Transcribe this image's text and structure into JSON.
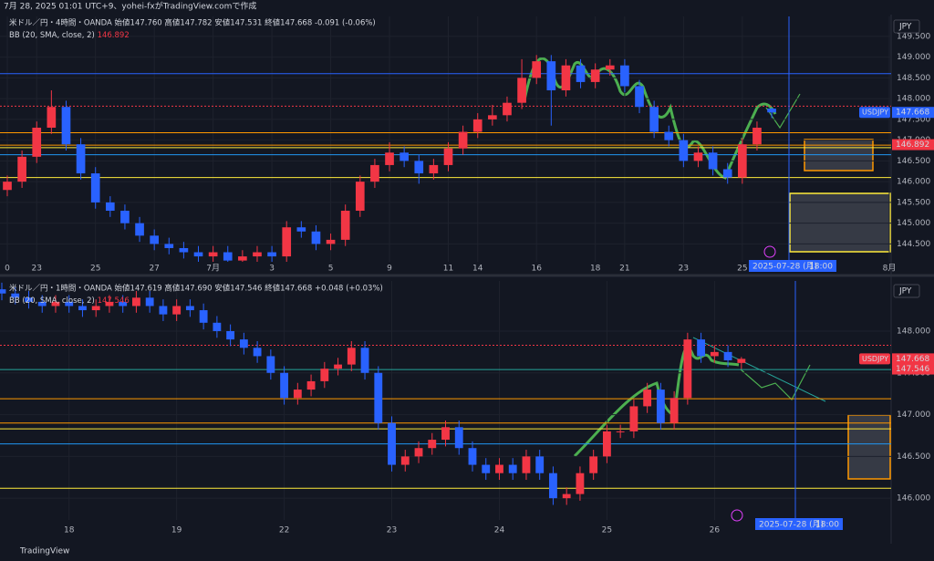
{
  "header": "7月 28, 2025 01:01 UTC+9、yohei-fxがTradingView.comで作成",
  "footer": "TradingView",
  "chart_data": [
    {
      "type": "candlestick",
      "legend": "米ドル／円・4時間・OANDA 始値147.760 高値147.782 安値147.531 終値147.668 -0.091 (-0.06%)",
      "indicator": "BB (20, SMA, close, 2)",
      "currency": "JPY",
      "crosshair_label": "2025-07-28 (月)",
      "crosshair_time": "18:00",
      "up_color": "#f23645",
      "down_color": "#2962ff",
      "categories": [
        "0",
        null,
        "23",
        null,
        null,
        null,
        "25",
        null,
        null,
        null,
        "27",
        null,
        null,
        null,
        "7月",
        null,
        null,
        null,
        "3",
        null,
        null,
        null,
        "5",
        null,
        null,
        null,
        "9",
        null,
        null,
        null,
        "11",
        null,
        "14",
        null,
        null,
        null,
        "16",
        null,
        null,
        null,
        "18",
        null,
        "21",
        null,
        null,
        null,
        "23",
        null,
        null,
        null,
        "25",
        null,
        null,
        null,
        null,
        null,
        null,
        null,
        null,
        null,
        "8月"
      ],
      "open": [
        145.8,
        146.0,
        146.6,
        147.3,
        147.8,
        146.9,
        146.2,
        145.5,
        145.3,
        145.0,
        144.7,
        144.5,
        144.4,
        144.3,
        144.2,
        144.3,
        144.1,
        144.2,
        144.3,
        144.2,
        144.9,
        144.8,
        144.5,
        144.6,
        145.3,
        146.0,
        146.4,
        146.7,
        146.5,
        146.2,
        146.4,
        146.8,
        147.2,
        147.5,
        147.6,
        147.9,
        148.5,
        148.9,
        148.2,
        148.8,
        148.4,
        148.7,
        148.8,
        148.3,
        147.8,
        147.2,
        147.0,
        146.5,
        146.7,
        146.3,
        146.1,
        146.9,
        147.76,
        null,
        null,
        null,
        null,
        null,
        null,
        null,
        null
      ],
      "high": [
        146.15,
        146.75,
        147.45,
        148.2,
        147.95,
        147.05,
        146.35,
        145.65,
        145.45,
        145.15,
        144.85,
        144.65,
        144.55,
        144.45,
        144.45,
        144.45,
        144.35,
        144.45,
        144.45,
        145.05,
        145.05,
        144.95,
        144.75,
        145.45,
        146.15,
        146.55,
        146.95,
        146.85,
        146.65,
        146.55,
        146.95,
        147.35,
        147.65,
        147.85,
        148.05,
        148.95,
        149.05,
        149.05,
        148.95,
        148.95,
        148.85,
        148.95,
        148.95,
        148.45,
        147.95,
        147.35,
        147.15,
        146.85,
        146.85,
        146.45,
        147.05,
        147.45,
        147.782,
        null,
        null,
        null,
        null,
        null,
        null,
        null,
        null
      ],
      "low": [
        145.65,
        145.85,
        146.45,
        147.15,
        146.75,
        146.05,
        145.35,
        145.15,
        144.85,
        144.55,
        144.35,
        144.25,
        144.15,
        144.05,
        144.05,
        143.95,
        143.95,
        144.05,
        144.05,
        144.05,
        144.65,
        144.35,
        144.35,
        144.45,
        145.15,
        145.85,
        146.25,
        146.35,
        145.95,
        146.05,
        146.25,
        146.65,
        147.05,
        147.35,
        147.45,
        147.75,
        148.35,
        147.35,
        148.05,
        148.25,
        148.25,
        148.55,
        148.15,
        147.65,
        147.05,
        146.85,
        146.35,
        146.35,
        146.15,
        145.95,
        145.95,
        146.75,
        147.531,
        null,
        null,
        null,
        null,
        null,
        null,
        null,
        null
      ],
      "close": [
        146.0,
        146.6,
        147.3,
        147.8,
        146.9,
        146.2,
        145.5,
        145.3,
        145.0,
        144.7,
        144.5,
        144.4,
        144.3,
        144.2,
        144.3,
        144.1,
        144.2,
        144.3,
        144.2,
        144.9,
        144.8,
        144.5,
        144.6,
        145.3,
        146.0,
        146.4,
        146.7,
        146.5,
        146.2,
        146.4,
        146.8,
        147.2,
        147.5,
        147.6,
        147.9,
        148.5,
        148.9,
        148.2,
        148.8,
        148.4,
        148.7,
        148.8,
        148.3,
        147.8,
        147.2,
        147.0,
        146.5,
        146.7,
        146.3,
        146.1,
        146.9,
        147.3,
        147.668,
        null,
        null,
        null,
        null,
        null,
        null,
        null,
        null
      ],
      "ylim": [
        144.07,
        149.98
      ],
      "yticks": [
        {
          "value": 144.5,
          "label": "144.500"
        },
        {
          "value": 145,
          "label": "145.000"
        },
        {
          "value": 145.5,
          "label": "145.500"
        },
        {
          "value": 146,
          "label": "146.000"
        },
        {
          "value": 146.5,
          "label": "146.500"
        },
        {
          "value": 147,
          "label": "147.000"
        },
        {
          "value": 147.5,
          "label": "147.500"
        },
        {
          "value": 148,
          "label": "148.000"
        },
        {
          "value": 148.5,
          "label": "148.500"
        },
        {
          "value": 149,
          "label": "149.000"
        },
        {
          "value": 149.5,
          "label": "149.500"
        }
      ],
      "levels": [
        {
          "value": 148.6,
          "color": "#2962ff",
          "style": "solid"
        },
        {
          "value": 147.82,
          "color": "#f23645",
          "style": "dotted"
        },
        {
          "value": 147.18,
          "color": "#ff9800",
          "style": "solid"
        },
        {
          "value": 146.88,
          "color": "#ff9800",
          "style": "solid"
        },
        {
          "value": 146.82,
          "color": "#ffeb3b",
          "style": "solid"
        },
        {
          "value": 146.65,
          "color": "#2196f3",
          "style": "solid"
        },
        {
          "value": 146.1,
          "color": "#ffeb3b",
          "style": "solid"
        }
      ],
      "price_tags": [
        {
          "label": "USDJPY",
          "value": 147.668,
          "color": "#2962ff"
        },
        {
          "value": 146.892,
          "color": "#f23645"
        }
      ]
    },
    {
      "type": "candlestick",
      "legend": "米ドル／円・1時間・OANDA 始値147.619 高値147.690 安値147.546 終値147.668 +0.048 (+0.03%)",
      "indicator": "BB (20, SMA, close, 2)",
      "currency": "JPY",
      "crosshair_label": "2025-07-28 (月)",
      "crosshair_time": "18:00",
      "up_color": "#f23645",
      "down_color": "#2962ff",
      "categories": [
        null,
        null,
        null,
        null,
        null,
        "18",
        null,
        null,
        null,
        null,
        null,
        null,
        null,
        "19",
        null,
        null,
        null,
        null,
        null,
        null,
        null,
        "22",
        null,
        null,
        null,
        null,
        null,
        null,
        null,
        "23",
        null,
        null,
        null,
        null,
        null,
        null,
        null,
        "24",
        null,
        null,
        null,
        null,
        null,
        null,
        null,
        "25",
        null,
        null,
        null,
        null,
        null,
        null,
        null,
        "26",
        null,
        null,
        null,
        null,
        null,
        null,
        null,
        null,
        null,
        null,
        null,
        null,
        null
      ],
      "open": [
        148.5,
        148.45,
        148.4,
        148.35,
        148.3,
        148.35,
        148.3,
        148.25,
        148.3,
        148.35,
        148.3,
        148.4,
        148.3,
        148.2,
        148.3,
        148.25,
        148.1,
        148.0,
        147.9,
        147.8,
        147.7,
        147.5,
        147.2,
        147.3,
        147.4,
        147.55,
        147.6,
        147.8,
        147.5,
        146.9,
        146.4,
        146.5,
        146.6,
        146.7,
        146.85,
        146.6,
        146.4,
        146.3,
        146.4,
        146.3,
        146.5,
        146.3,
        146.0,
        146.05,
        146.3,
        146.5,
        146.8,
        146.8,
        147.1,
        147.3,
        146.9,
        147.2,
        147.9,
        147.7,
        147.75,
        147.619,
        null,
        null,
        null,
        null,
        null,
        null,
        null,
        null,
        null,
        null,
        null
      ],
      "high": [
        148.58,
        148.53,
        148.48,
        148.43,
        148.43,
        148.43,
        148.38,
        148.38,
        148.43,
        148.43,
        148.48,
        148.48,
        148.38,
        148.38,
        148.38,
        148.33,
        148.18,
        148.08,
        147.98,
        147.88,
        147.78,
        147.58,
        147.38,
        147.48,
        147.63,
        147.68,
        147.88,
        147.88,
        147.58,
        146.98,
        146.58,
        146.68,
        146.78,
        146.93,
        146.93,
        146.68,
        146.48,
        146.48,
        146.48,
        146.58,
        146.58,
        146.38,
        146.13,
        146.38,
        146.58,
        146.88,
        146.88,
        147.18,
        147.38,
        147.38,
        147.28,
        147.98,
        147.98,
        147.83,
        147.83,
        147.69,
        null,
        null,
        null,
        null,
        null,
        null,
        null,
        null,
        null,
        null,
        null
      ],
      "low": [
        148.37,
        148.32,
        148.27,
        148.22,
        148.22,
        148.22,
        148.17,
        148.17,
        148.22,
        148.22,
        148.22,
        148.22,
        148.12,
        148.12,
        148.17,
        148.02,
        147.92,
        147.82,
        147.72,
        147.62,
        147.42,
        147.12,
        147.12,
        147.22,
        147.32,
        147.47,
        147.52,
        147.42,
        146.82,
        146.32,
        146.32,
        146.42,
        146.52,
        146.62,
        146.52,
        146.32,
        146.22,
        146.22,
        146.22,
        146.22,
        146.22,
        145.92,
        145.92,
        145.97,
        146.22,
        146.42,
        146.72,
        146.72,
        147.02,
        146.82,
        146.82,
        147.12,
        147.62,
        147.62,
        147.57,
        147.546,
        null,
        null,
        null,
        null,
        null,
        null,
        null,
        null,
        null,
        null,
        null
      ],
      "close": [
        148.45,
        148.4,
        148.35,
        148.3,
        148.35,
        148.3,
        148.25,
        148.3,
        148.35,
        148.3,
        148.4,
        148.3,
        148.2,
        148.3,
        148.25,
        148.1,
        148.0,
        147.9,
        147.8,
        147.7,
        147.5,
        147.2,
        147.3,
        147.4,
        147.55,
        147.6,
        147.8,
        147.5,
        146.9,
        146.4,
        146.5,
        146.6,
        146.7,
        146.85,
        146.6,
        146.4,
        146.3,
        146.4,
        146.3,
        146.5,
        146.3,
        146.0,
        146.05,
        146.3,
        146.5,
        146.8,
        146.8,
        147.1,
        147.3,
        146.9,
        147.2,
        147.9,
        147.7,
        147.75,
        147.65,
        147.668,
        null,
        null,
        null,
        null,
        null,
        null,
        null,
        null,
        null,
        null,
        null
      ],
      "ylim": [
        145.74,
        148.6
      ],
      "yticks": [
        {
          "value": 146,
          "label": "146.000"
        },
        {
          "value": 146.5,
          "label": "146.500"
        },
        {
          "value": 147,
          "label": "147.000"
        },
        {
          "value": 147.5,
          "label": "147.500"
        },
        {
          "value": 148,
          "label": "148.000"
        }
      ],
      "levels": [
        {
          "value": 147.83,
          "color": "#f23645",
          "style": "dotted"
        },
        {
          "value": 147.54,
          "color": "#26a69a",
          "style": "solid"
        },
        {
          "value": 147.19,
          "color": "#ff9800",
          "style": "solid"
        },
        {
          "value": 146.9,
          "color": "#ff9800",
          "style": "solid"
        },
        {
          "value": 146.83,
          "color": "#ffeb3b",
          "style": "solid"
        },
        {
          "value": 146.65,
          "color": "#2196f3",
          "style": "solid"
        },
        {
          "value": 146.12,
          "color": "#ffeb3b",
          "style": "solid"
        }
      ],
      "price_tags": [
        {
          "label": "USDJPY",
          "value": 147.668,
          "color": "#f23645"
        },
        {
          "value": 147.546,
          "color": "#f23645"
        }
      ]
    }
  ]
}
